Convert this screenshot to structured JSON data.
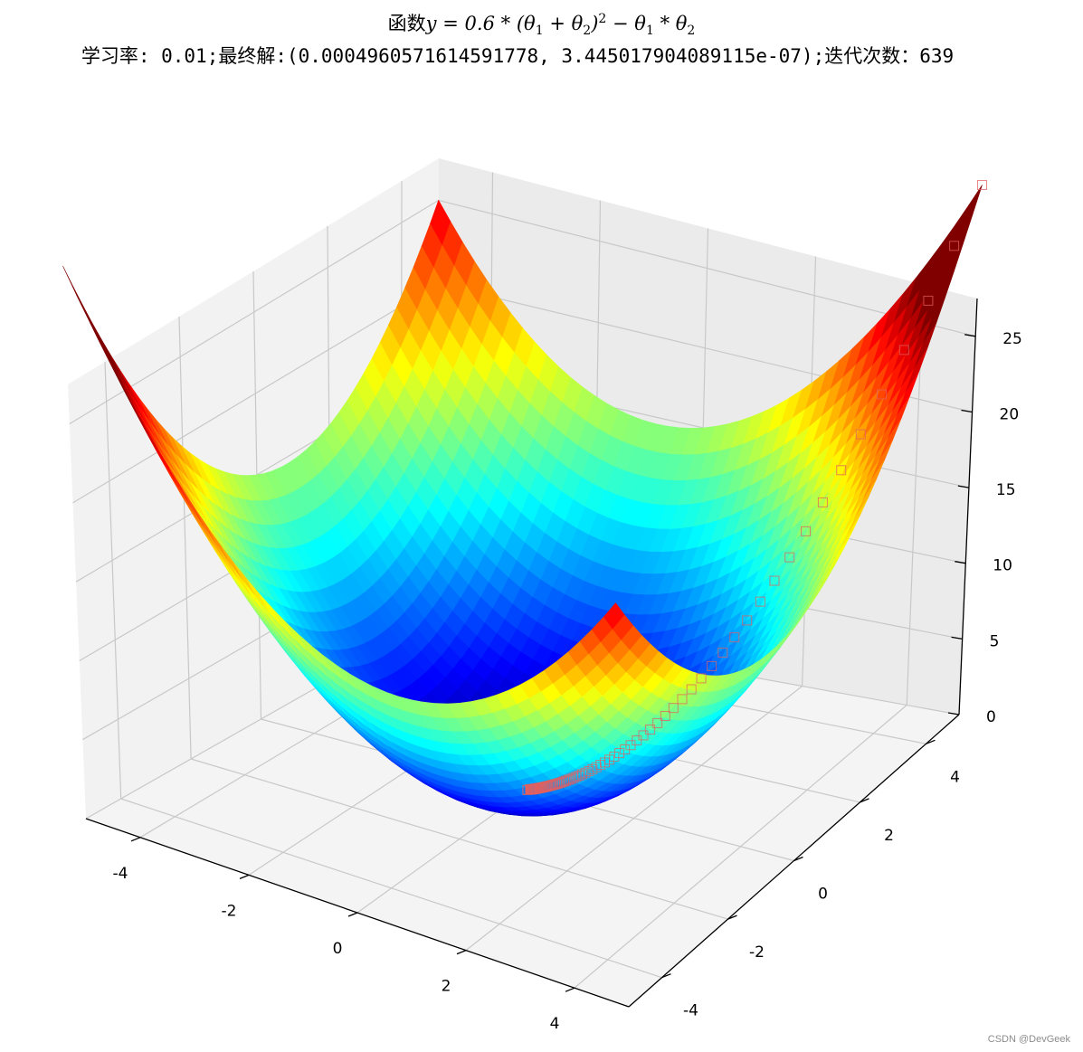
{
  "chart_data": {
    "type": "surface3d",
    "title": "函数y = 0.6 * (θ₁ + θ₂)² − θ₁ * θ₂",
    "subtitle": "学习率: 0.01;最终解:(0.0004960571614591778, 3.445017904089115e-07);迭代次数：639",
    "function": "0.6*(theta1+theta2)^2 - theta1*theta2",
    "x_range": [
      -5,
      5
    ],
    "y_range": [
      -5,
      5
    ],
    "z_range": [
      0,
      27.5
    ],
    "colormap": "jet",
    "x_ticks": [
      "-4",
      "-2",
      "0",
      "2",
      "4"
    ],
    "y_ticks": [
      "-4",
      "-2",
      "0",
      "2",
      "4"
    ],
    "z_ticks": [
      "0",
      "5",
      "10",
      "15",
      "20",
      "25"
    ],
    "x_tick_values": [
      -4,
      -2,
      0,
      2,
      4
    ],
    "y_tick_values": [
      -4,
      -2,
      0,
      2,
      4
    ],
    "z_tick_values": [
      0,
      5,
      10,
      15,
      20,
      25
    ],
    "descent_path_start": [
      5,
      5
    ],
    "descent_path_end": [
      0.0004960571614591778,
      3.445017904089115e-07
    ],
    "descent_path_color": "#e06060",
    "grid": true
  },
  "watermark": "CSDN @DevGeek"
}
